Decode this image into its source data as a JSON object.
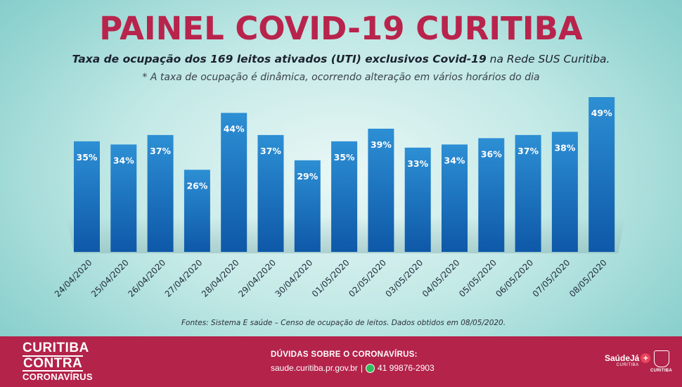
{
  "header": {
    "title": "PAINEL COVID-19 CURITIBA",
    "subtitle_part1": "Taxa de ocupação dos 169 leitos ativados (UTI) exclusivos Covid-19",
    "subtitle_part2": " na Rede SUS Curitiba.",
    "note": "* A taxa de ocupação é dinâmica, ocorrendo alteração em vários horários do dia"
  },
  "chart_data": {
    "type": "bar",
    "title": "Taxa de ocupação dos 169 leitos ativados (UTI) exclusivos Covid-19 na Rede SUS Curitiba.",
    "categories": [
      "24/04/2020",
      "25/04/2020",
      "26/04/2020",
      "27/04/2020",
      "28/04/2020",
      "29/04/2020",
      "30/04/2020",
      "01/05/2020",
      "02/05/2020",
      "03/05/2020",
      "04/05/2020",
      "05/05/2020",
      "06/05/2020",
      "07/05/2020",
      "08/05/2020"
    ],
    "values": [
      35,
      34,
      37,
      26,
      44,
      37,
      29,
      35,
      39,
      33,
      34,
      36,
      37,
      38,
      49
    ],
    "value_suffix": "%",
    "ylim": [
      0,
      49
    ],
    "xlabel": "",
    "ylabel": "",
    "grid": false,
    "colors": {
      "bar_top": "#2d8fd4",
      "bar_bottom": "#0e58a8",
      "shadow": "#8fb8b8"
    }
  },
  "source": "Fontes: Sistema E saúde – Censo de ocupação de leitos. Dados obtidos em 08/05/2020.",
  "footer": {
    "brand_line1": "CURITIBA",
    "brand_line2": "CONTRA",
    "brand_line3": "CORONAVÍRUS",
    "help_title": "DÚVIDAS SOBRE O CORONAVÍRUS:",
    "help_site": "saude.curitiba.pr.gov.br",
    "help_separator": "|",
    "help_phone": "41 99876-2903",
    "saude_logo_text": "SaúdeJá",
    "saude_logo_sub": "CURITIBA",
    "city_logo_text": "CURITIBA",
    "background": "#b3234a"
  }
}
